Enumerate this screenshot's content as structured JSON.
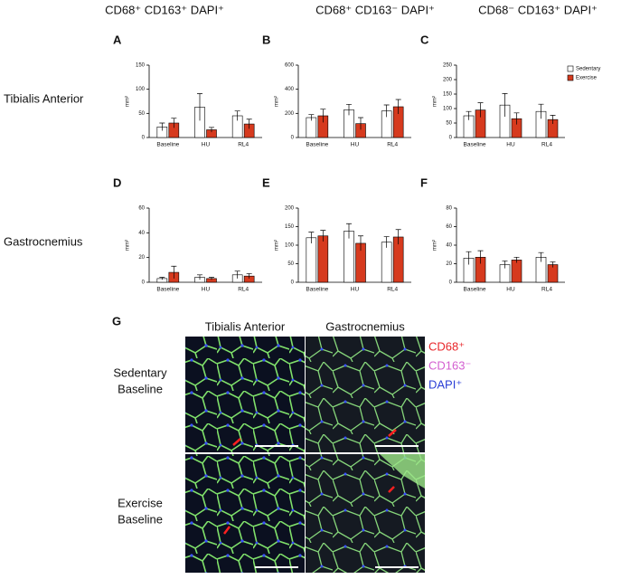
{
  "column_headers": [
    "CD68⁺ CD163⁺ DAPI⁺",
    "CD68⁺ CD163⁻ DAPI⁺",
    "CD68⁻ CD163⁺ DAPI⁺"
  ],
  "row_labels": [
    "Tibialis Anterior",
    "Gastrocnemius"
  ],
  "chart_data": [
    {
      "type": "bar",
      "panel": "A",
      "y_label": "mm²",
      "categories": [
        "Baseline",
        "HU",
        "RL4"
      ],
      "series": [
        {
          "color": "#ffffff",
          "values": [
            22,
            63,
            45
          ],
          "errors": [
            8,
            28,
            10
          ]
        },
        {
          "color": "#d63a1e",
          "values": [
            30,
            16,
            28
          ],
          "errors": [
            10,
            5,
            10
          ]
        }
      ],
      "ylim": [
        0,
        150
      ],
      "yticks": [
        0,
        50,
        100,
        150
      ]
    },
    {
      "type": "bar",
      "panel": "B",
      "y_label": "mm²",
      "categories": [
        "Baseline",
        "HU",
        "RL4"
      ],
      "series": [
        {
          "color": "#ffffff",
          "values": [
            165,
            230,
            220
          ],
          "errors": [
            25,
            45,
            50
          ]
        },
        {
          "color": "#d63a1e",
          "values": [
            180,
            115,
            255
          ],
          "errors": [
            55,
            50,
            60
          ]
        }
      ],
      "ylim": [
        0,
        600
      ],
      "yticks": [
        0,
        200,
        400,
        600
      ]
    },
    {
      "type": "bar",
      "panel": "C",
      "y_label": "mm²",
      "categories": [
        "Baseline",
        "HU",
        "RL4"
      ],
      "series": [
        {
          "name": "Sedentary",
          "color": "#ffffff",
          "values": [
            75,
            112,
            90
          ],
          "errors": [
            15,
            40,
            25
          ]
        },
        {
          "name": "Exercise",
          "color": "#d63a1e",
          "values": [
            95,
            65,
            62
          ],
          "errors": [
            25,
            20,
            15
          ]
        }
      ],
      "ylim": [
        0,
        250
      ],
      "yticks": [
        0,
        50,
        100,
        150,
        200,
        250
      ],
      "legend": "upper right"
    },
    {
      "type": "bar",
      "panel": "D",
      "y_label": "mm²",
      "categories": [
        "Baseline",
        "HU",
        "RL4"
      ],
      "series": [
        {
          "color": "#ffffff",
          "values": [
            3,
            4,
            6
          ],
          "errors": [
            1,
            2,
            3
          ]
        },
        {
          "color": "#d63a1e",
          "values": [
            8,
            3,
            5
          ],
          "errors": [
            5,
            1,
            2
          ]
        }
      ],
      "ylim": [
        0,
        60
      ],
      "yticks": [
        0,
        20,
        40,
        60
      ]
    },
    {
      "type": "bar",
      "panel": "E",
      "y_label": "mm²",
      "categories": [
        "Baseline",
        "HU",
        "RL4"
      ],
      "series": [
        {
          "color": "#ffffff",
          "values": [
            120,
            138,
            108
          ],
          "errors": [
            15,
            20,
            15
          ]
        },
        {
          "color": "#d63a1e",
          "values": [
            125,
            105,
            122
          ],
          "errors": [
            15,
            20,
            20
          ]
        }
      ],
      "ylim": [
        0,
        200
      ],
      "yticks": [
        0,
        50,
        100,
        150,
        200
      ]
    },
    {
      "type": "bar",
      "panel": "F",
      "y_label": "mm²",
      "categories": [
        "Baseline",
        "HU",
        "RL4"
      ],
      "series": [
        {
          "color": "#ffffff",
          "values": [
            26,
            19,
            27
          ],
          "errors": [
            7,
            4,
            5
          ]
        },
        {
          "color": "#d63a1e",
          "values": [
            27,
            24,
            19
          ],
          "errors": [
            7,
            3,
            3
          ]
        }
      ],
      "ylim": [
        0,
        80
      ],
      "yticks": [
        0,
        20,
        40,
        60,
        80
      ]
    }
  ],
  "panel_g": {
    "letter": "G",
    "columns": [
      "Tibialis Anterior",
      "Gastrocnemius"
    ],
    "rows": [
      [
        "Sedentary",
        "Baseline"
      ],
      [
        "Exercise",
        "Baseline"
      ]
    ],
    "stain_legend": [
      {
        "label": "CD68⁺",
        "color": "#e8262a"
      },
      {
        "label": "CD163⁻",
        "color": "#d35fd0"
      },
      {
        "label": "DAPI⁺",
        "color": "#2b3fd6"
      }
    ]
  }
}
